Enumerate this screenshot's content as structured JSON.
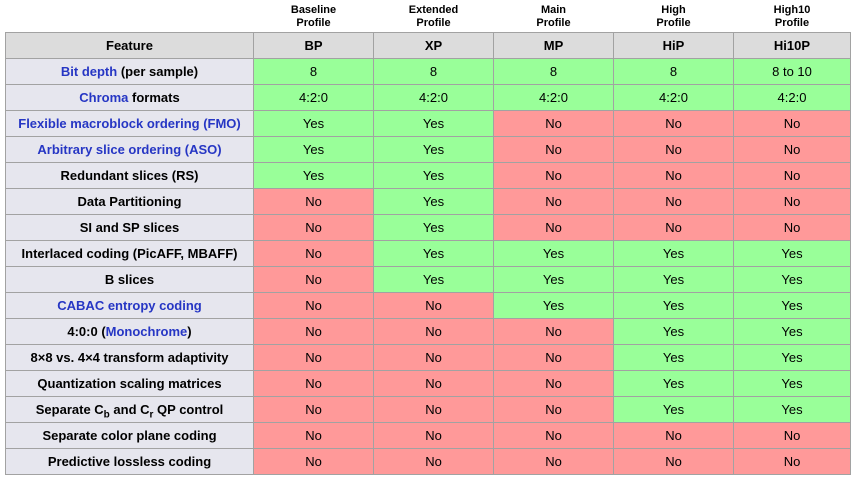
{
  "colors": {
    "page_bg": "#ffffff",
    "text": "#000000",
    "yes_bg": "#99ff99",
    "no_bg": "#ff9999",
    "header_bg": "#dcdcdc",
    "label_bg": "#e6e6ee",
    "border": "#a2a2a2",
    "link_color": "#2636c4"
  },
  "table": {
    "feature_header": "Feature",
    "profiles": [
      {
        "lines": [
          "Baseline",
          "Profile"
        ],
        "abbr": "BP"
      },
      {
        "lines": [
          "Extended",
          "Profile"
        ],
        "abbr": "XP"
      },
      {
        "lines": [
          "Main",
          "Profile"
        ],
        "abbr": "MP"
      },
      {
        "lines": [
          "High",
          "Profile"
        ],
        "abbr": "HiP"
      },
      {
        "lines": [
          "High10",
          "Profile"
        ],
        "abbr": "Hi10P"
      }
    ],
    "rows": [
      {
        "label": [
          {
            "t": "Bit depth",
            "link": true
          },
          {
            "t": " (per sample)"
          }
        ],
        "values": [
          "8",
          "8",
          "8",
          "8",
          "8 to 10"
        ],
        "states": [
          "y",
          "y",
          "y",
          "y",
          "y"
        ]
      },
      {
        "label": [
          {
            "t": "Chroma",
            "link": true
          },
          {
            "t": " formats"
          }
        ],
        "values": [
          "4:2:0",
          "4:2:0",
          "4:2:0",
          "4:2:0",
          "4:2:0"
        ],
        "states": [
          "y",
          "y",
          "y",
          "y",
          "y"
        ]
      },
      {
        "label": [
          {
            "t": "Flexible macroblock ordering (FMO)",
            "link": true
          }
        ],
        "values": [
          "Yes",
          "Yes",
          "No",
          "No",
          "No"
        ],
        "states": [
          "y",
          "y",
          "n",
          "n",
          "n"
        ]
      },
      {
        "label": [
          {
            "t": "Arbitrary slice ordering (ASO)",
            "link": true
          }
        ],
        "values": [
          "Yes",
          "Yes",
          "No",
          "No",
          "No"
        ],
        "states": [
          "y",
          "y",
          "n",
          "n",
          "n"
        ]
      },
      {
        "label": [
          {
            "t": "Redundant slices (RS)"
          }
        ],
        "values": [
          "Yes",
          "Yes",
          "No",
          "No",
          "No"
        ],
        "states": [
          "y",
          "y",
          "n",
          "n",
          "n"
        ]
      },
      {
        "label": [
          {
            "t": "Data Partitioning"
          }
        ],
        "values": [
          "No",
          "Yes",
          "No",
          "No",
          "No"
        ],
        "states": [
          "n",
          "y",
          "n",
          "n",
          "n"
        ]
      },
      {
        "label": [
          {
            "t": "SI and SP slices"
          }
        ],
        "values": [
          "No",
          "Yes",
          "No",
          "No",
          "No"
        ],
        "states": [
          "n",
          "y",
          "n",
          "n",
          "n"
        ]
      },
      {
        "label": [
          {
            "t": "Interlaced coding (PicAFF, MBAFF)"
          }
        ],
        "values": [
          "No",
          "Yes",
          "Yes",
          "Yes",
          "Yes"
        ],
        "states": [
          "n",
          "y",
          "y",
          "y",
          "y"
        ]
      },
      {
        "label": [
          {
            "t": "B slices"
          }
        ],
        "values": [
          "No",
          "Yes",
          "Yes",
          "Yes",
          "Yes"
        ],
        "states": [
          "n",
          "y",
          "y",
          "y",
          "y"
        ]
      },
      {
        "label": [
          {
            "t": "CABAC entropy coding",
            "link": true
          }
        ],
        "values": [
          "No",
          "No",
          "Yes",
          "Yes",
          "Yes"
        ],
        "states": [
          "n",
          "n",
          "y",
          "y",
          "y"
        ]
      },
      {
        "label": [
          {
            "t": "4:0:0 ("
          },
          {
            "t": "Monochrome",
            "link": true
          },
          {
            "t": ")"
          }
        ],
        "values": [
          "No",
          "No",
          "No",
          "Yes",
          "Yes"
        ],
        "states": [
          "n",
          "n",
          "n",
          "y",
          "y"
        ]
      },
      {
        "label": [
          {
            "t": "8×8 vs. 4×4 transform adaptivity"
          }
        ],
        "values": [
          "No",
          "No",
          "No",
          "Yes",
          "Yes"
        ],
        "states": [
          "n",
          "n",
          "n",
          "y",
          "y"
        ]
      },
      {
        "label": [
          {
            "t": "Quantization scaling matrices"
          }
        ],
        "values": [
          "No",
          "No",
          "No",
          "Yes",
          "Yes"
        ],
        "states": [
          "n",
          "n",
          "n",
          "y",
          "y"
        ]
      },
      {
        "label": [
          {
            "t": "Separate C"
          },
          {
            "t": "b",
            "sub": true
          },
          {
            "t": " and C"
          },
          {
            "t": "r",
            "sub": true
          },
          {
            "t": " QP control"
          }
        ],
        "values": [
          "No",
          "No",
          "No",
          "Yes",
          "Yes"
        ],
        "states": [
          "n",
          "n",
          "n",
          "y",
          "y"
        ]
      },
      {
        "label": [
          {
            "t": "Separate color plane coding"
          }
        ],
        "values": [
          "No",
          "No",
          "No",
          "No",
          "No"
        ],
        "states": [
          "n",
          "n",
          "n",
          "n",
          "n"
        ]
      },
      {
        "label": [
          {
            "t": "Predictive lossless coding"
          }
        ],
        "values": [
          "No",
          "No",
          "No",
          "No",
          "No"
        ],
        "states": [
          "n",
          "n",
          "n",
          "n",
          "n"
        ]
      }
    ]
  }
}
